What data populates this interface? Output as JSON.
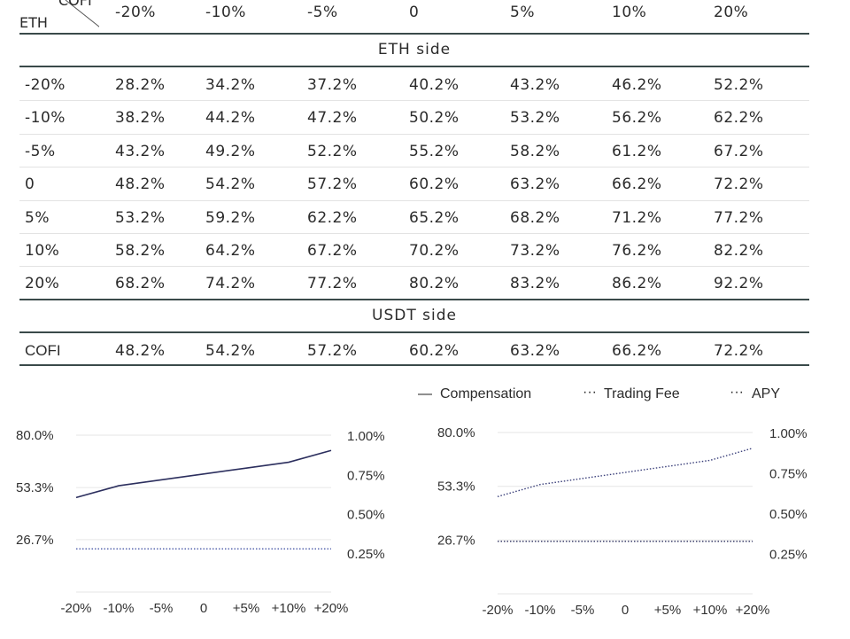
{
  "table": {
    "corner_top": "COFI",
    "corner_left": "ETH",
    "columns": [
      "-20%",
      "-10%",
      "-5%",
      "0",
      "5%",
      "10%",
      "20%"
    ],
    "eth_section_title": "ETH side",
    "eth_rows": [
      {
        "label": "-20%",
        "values": [
          "28.2%",
          "34.2%",
          "37.2%",
          "40.2%",
          "43.2%",
          "46.2%",
          "52.2%"
        ]
      },
      {
        "label": "-10%",
        "values": [
          "38.2%",
          "44.2%",
          "47.2%",
          "50.2%",
          "53.2%",
          "56.2%",
          "62.2%"
        ]
      },
      {
        "label": "-5%",
        "values": [
          "43.2%",
          "49.2%",
          "52.2%",
          "55.2%",
          "58.2%",
          "61.2%",
          "67.2%"
        ]
      },
      {
        "label": "0",
        "values": [
          "48.2%",
          "54.2%",
          "57.2%",
          "60.2%",
          "63.2%",
          "66.2%",
          "72.2%"
        ]
      },
      {
        "label": "5%",
        "values": [
          "53.2%",
          "59.2%",
          "62.2%",
          "65.2%",
          "68.2%",
          "71.2%",
          "77.2%"
        ]
      },
      {
        "label": "10%",
        "values": [
          "58.2%",
          "64.2%",
          "67.2%",
          "70.2%",
          "73.2%",
          "76.2%",
          "82.2%"
        ]
      },
      {
        "label": "20%",
        "values": [
          "68.2%",
          "74.2%",
          "77.2%",
          "80.2%",
          "83.2%",
          "86.2%",
          "92.2%"
        ]
      }
    ],
    "usdt_section_title": "USDT side",
    "usdt_rows": [
      {
        "label": "COFI",
        "values": [
          "48.2%",
          "54.2%",
          "57.2%",
          "60.2%",
          "63.2%",
          "66.2%",
          "72.2%"
        ]
      }
    ]
  },
  "legend": {
    "items": [
      {
        "symbol": "—",
        "label": "Compensation"
      },
      {
        "symbol": "···",
        "label": "Trading Fee"
      },
      {
        "symbol": "···",
        "label": "APY"
      }
    ]
  },
  "chart_data": [
    {
      "type": "line",
      "categories": [
        "-20%",
        "-10%",
        "-5%",
        "0",
        "+5%",
        "+10%",
        "+20%"
      ],
      "y_ticks_left": [
        "80.0%",
        "53.3%",
        "26.7%"
      ],
      "y_ticks_right": [
        "1.00%",
        "0.75%",
        "0.50%",
        "0.25%"
      ],
      "ylim_left": [
        0,
        80
      ],
      "ylim_right": [
        0,
        1.0
      ],
      "grid": true,
      "series": [
        {
          "axis": "left",
          "style": "solid",
          "color": "#2c2f5e",
          "values": [
            48.2,
            54.2,
            57.2,
            60.2,
            63.2,
            66.2,
            72.2
          ]
        },
        {
          "axis": "left",
          "style": "dotted",
          "color": "#4a5aa8",
          "values": [
            22,
            22,
            22,
            22,
            22,
            22,
            22
          ]
        }
      ]
    },
    {
      "type": "line",
      "categories": [
        "-20%",
        "-10%",
        "-5%",
        "0",
        "+5%",
        "+10%",
        "+20%"
      ],
      "y_ticks_left": [
        "80.0%",
        "53.3%",
        "26.7%"
      ],
      "y_ticks_right": [
        "1.00%",
        "0.75%",
        "0.50%",
        "0.25%"
      ],
      "ylim_left": [
        0,
        80
      ],
      "ylim_right": [
        0,
        1.0
      ],
      "grid": true,
      "series": [
        {
          "axis": "left",
          "style": "dotted",
          "color": "#3a3f7a",
          "values": [
            48.2,
            54.2,
            57.2,
            60.2,
            63.2,
            66.2,
            72.2
          ]
        },
        {
          "axis": "left",
          "style": "dotted",
          "color": "#2c2f5e",
          "values": [
            26,
            26,
            26,
            26,
            26,
            26,
            26
          ]
        }
      ]
    }
  ]
}
